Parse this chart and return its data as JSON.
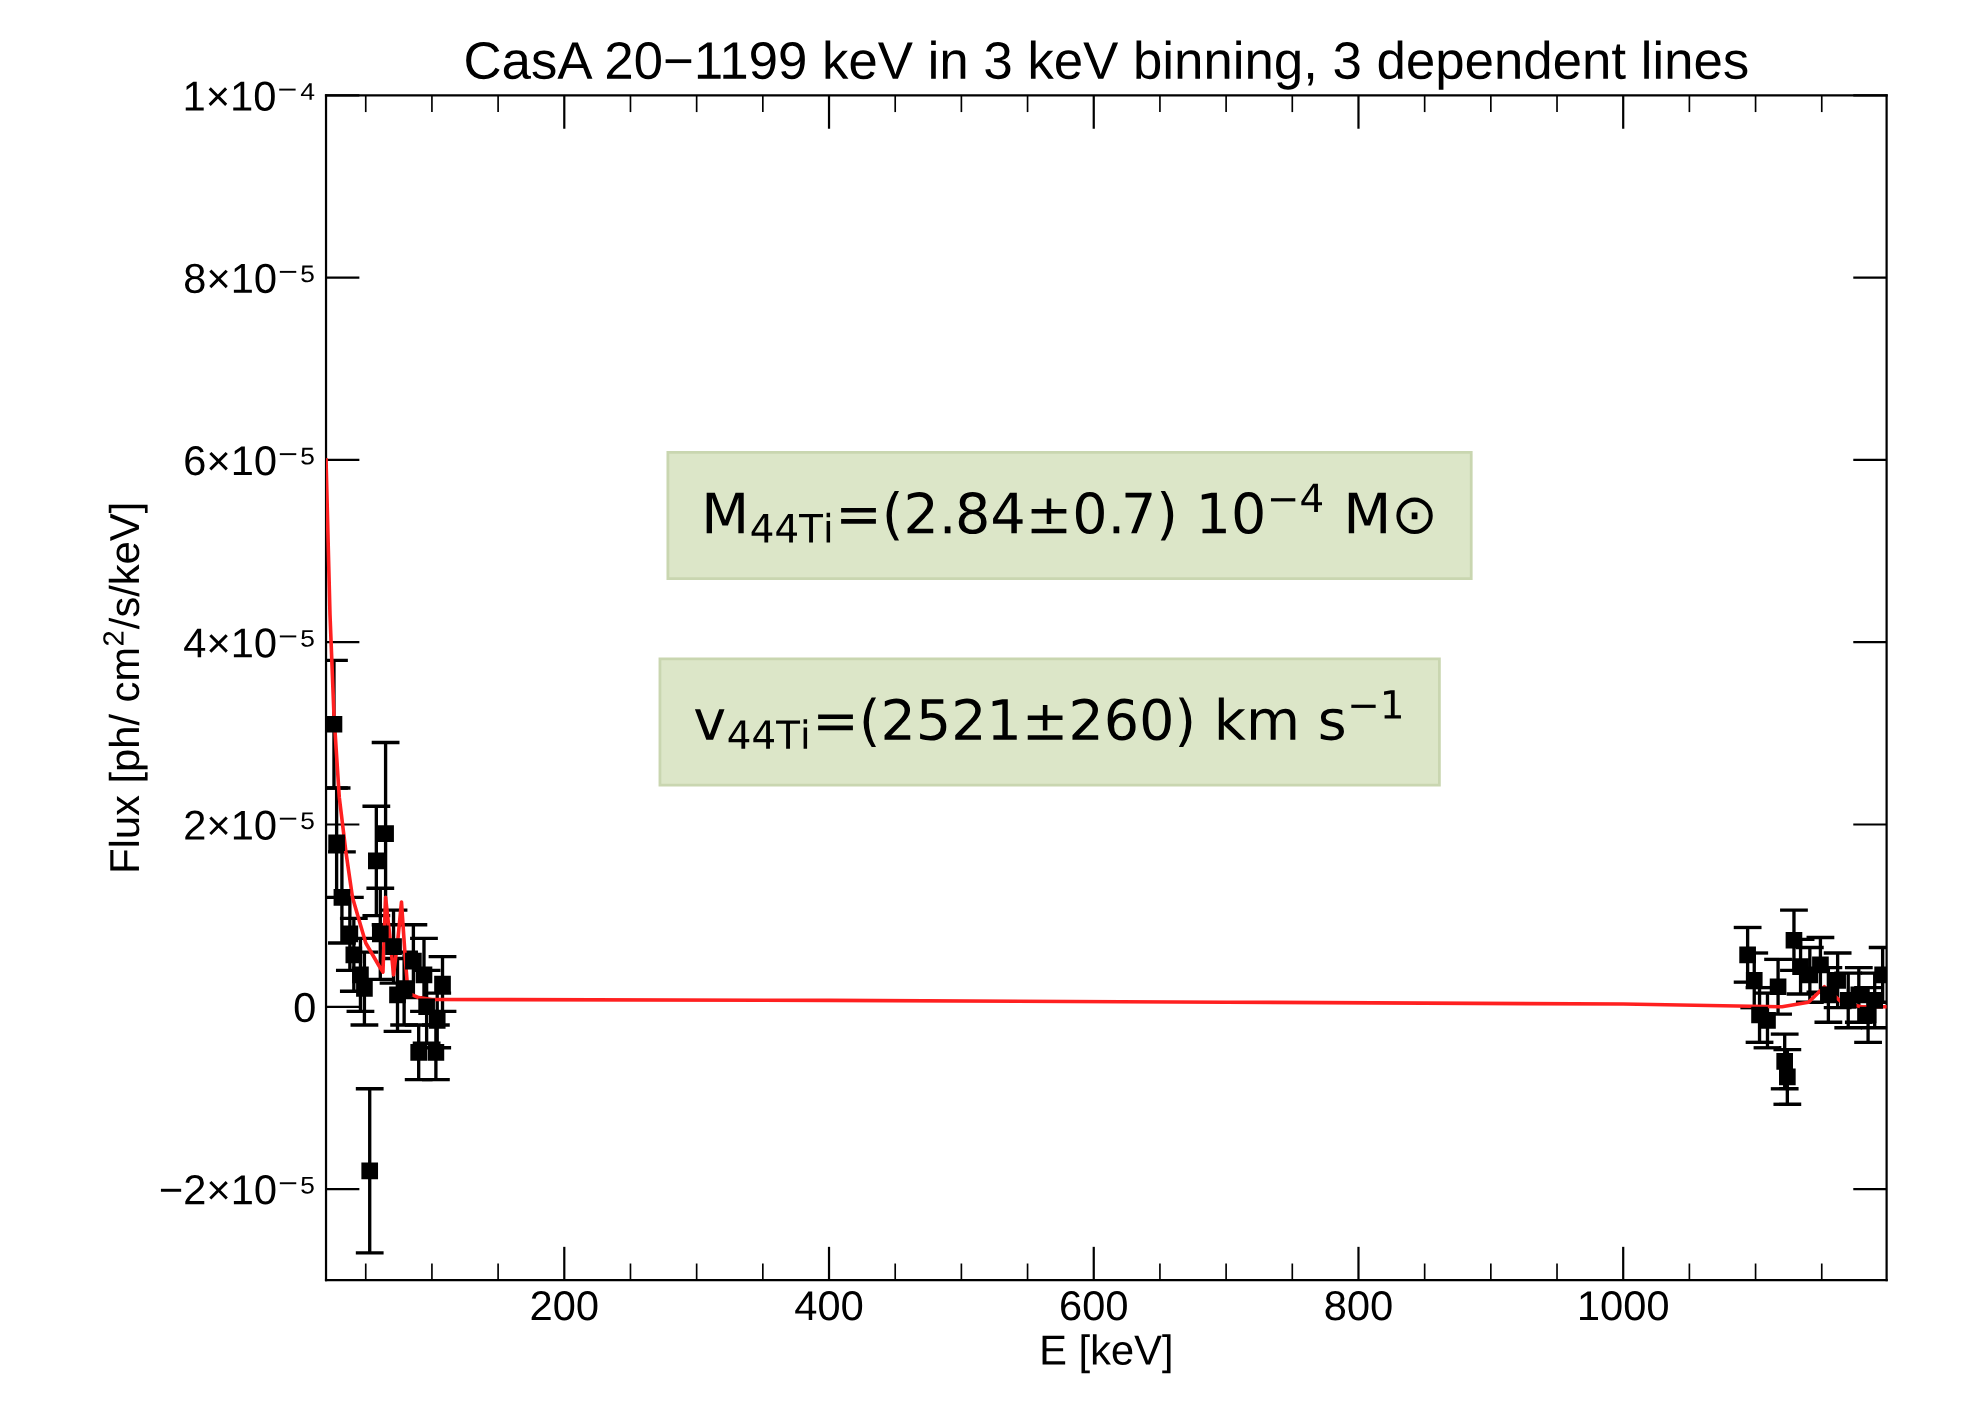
{
  "chart_data": {
    "type": "scatter",
    "title": "CasA 20−1199 keV in 3 keV binning, 3 dependent lines",
    "xlabel": "E [keV]",
    "ylabel": "Flux [ph/ cm$^{2}$/s/keV]",
    "xlim": [
      20,
      1199
    ],
    "xticks": [
      200,
      400,
      600,
      800,
      1000
    ],
    "ylim": [
      -3e-05,
      0.0001
    ],
    "yticks": [
      {
        "value": -2e-05,
        "label": "−2×10⁻⁵"
      },
      0,
      {
        "value": 2e-05,
        "label": "2×10⁻⁵"
      },
      {
        "value": 4e-05,
        "label": "4×10⁻⁵"
      },
      {
        "value": 6e-05,
        "label": "6×10⁻⁵"
      },
      {
        "value": 8e-05,
        "label": "8×10⁻⁵"
      },
      {
        "value": 0.0001,
        "label": "1×10⁻⁴"
      }
    ],
    "grid": false,
    "legend": false,
    "annotations": [
      "M$_{44Ti}$=(2.84±0.7) 10$^{−4}$ M⊙",
      "v$_{44Ti}$=(2521±260) km s$^{−1}$"
    ],
    "series": [
      {
        "color": "#000000",
        "marker": "square",
        "x": [
          26,
          28,
          32,
          38,
          41,
          46,
          49,
          53,
          58,
          61,
          65,
          71,
          74,
          79,
          86,
          90,
          94,
          96,
          103,
          104,
          108,
          1094,
          1099,
          1103,
          1109,
          1117,
          1122,
          1124,
          1129,
          1134,
          1141,
          1149,
          1155,
          1162,
          1170,
          1178,
          1185,
          1190,
          1196
        ],
        "values": [
          3.1e-05,
          1.8e-05,
          1.2e-05,
          8e-06,
          5.7e-06,
          3.5e-06,
          2e-06,
          -1.8e-05,
          1.6e-05,
          8e-06,
          1.9e-05,
          6.6e-06,
          1.3e-06,
          2e-06,
          5e-06,
          -5e-06,
          3.5e-06,
          0.0,
          -5e-06,
          -1.5e-06,
          2.5e-06,
          5.7e-06,
          2.9e-06,
          -9e-07,
          -1.5e-06,
          2.2e-06,
          -6e-06,
          -7.7e-06,
          7.3e-06,
          4.4e-06,
          3.5e-06,
          4.6e-06,
          1.3e-06,
          2.9e-06,
          7e-07,
          1.3e-06,
          -9e-07,
          7e-07,
          3.5e-06
        ],
        "errors": [
          7e-06,
          6e-06,
          5e-06,
          4e-06,
          4e-06,
          4e-06,
          4e-06,
          9e-06,
          6e-06,
          5e-06,
          1e-05,
          4e-06,
          4e-06,
          4e-06,
          4e-06,
          3e-06,
          4e-06,
          4e-06,
          3e-06,
          3e-06,
          3e-06,
          3e-06,
          3e-06,
          3e-06,
          3e-06,
          3e-06,
          3e-06,
          3e-06,
          3.3e-06,
          3e-06,
          3e-06,
          3e-06,
          3e-06,
          3e-06,
          3e-06,
          3e-06,
          3e-06,
          3e-06,
          3e-06
        ]
      },
      {
        "type": "line",
        "color": "#ff2020",
        "marker": "none",
        "line_style": "solid",
        "x": [
          20,
          23,
          26,
          30,
          35,
          40,
          50,
          60,
          63,
          65,
          68,
          71,
          74,
          77,
          80,
          82,
          90,
          100,
          400,
          700,
          1000,
          1120,
          1140,
          1152,
          1165,
          1180,
          1199
        ],
        "values": [
          6e-05,
          4.3e-05,
          3.2e-05,
          2.3e-05,
          1.7e-05,
          1.2e-05,
          7e-06,
          4.5e-06,
          3.8e-06,
          1.2e-05,
          8e-06,
          3.5e-06,
          7e-06,
          1.15e-05,
          5e-06,
          1.5e-06,
          1e-06,
          8e-07,
          7e-07,
          5e-07,
          3e-07,
          0.0,
          5e-07,
          2.2e-06,
          5e-07,
          0.0,
          0.0
        ]
      }
    ]
  }
}
